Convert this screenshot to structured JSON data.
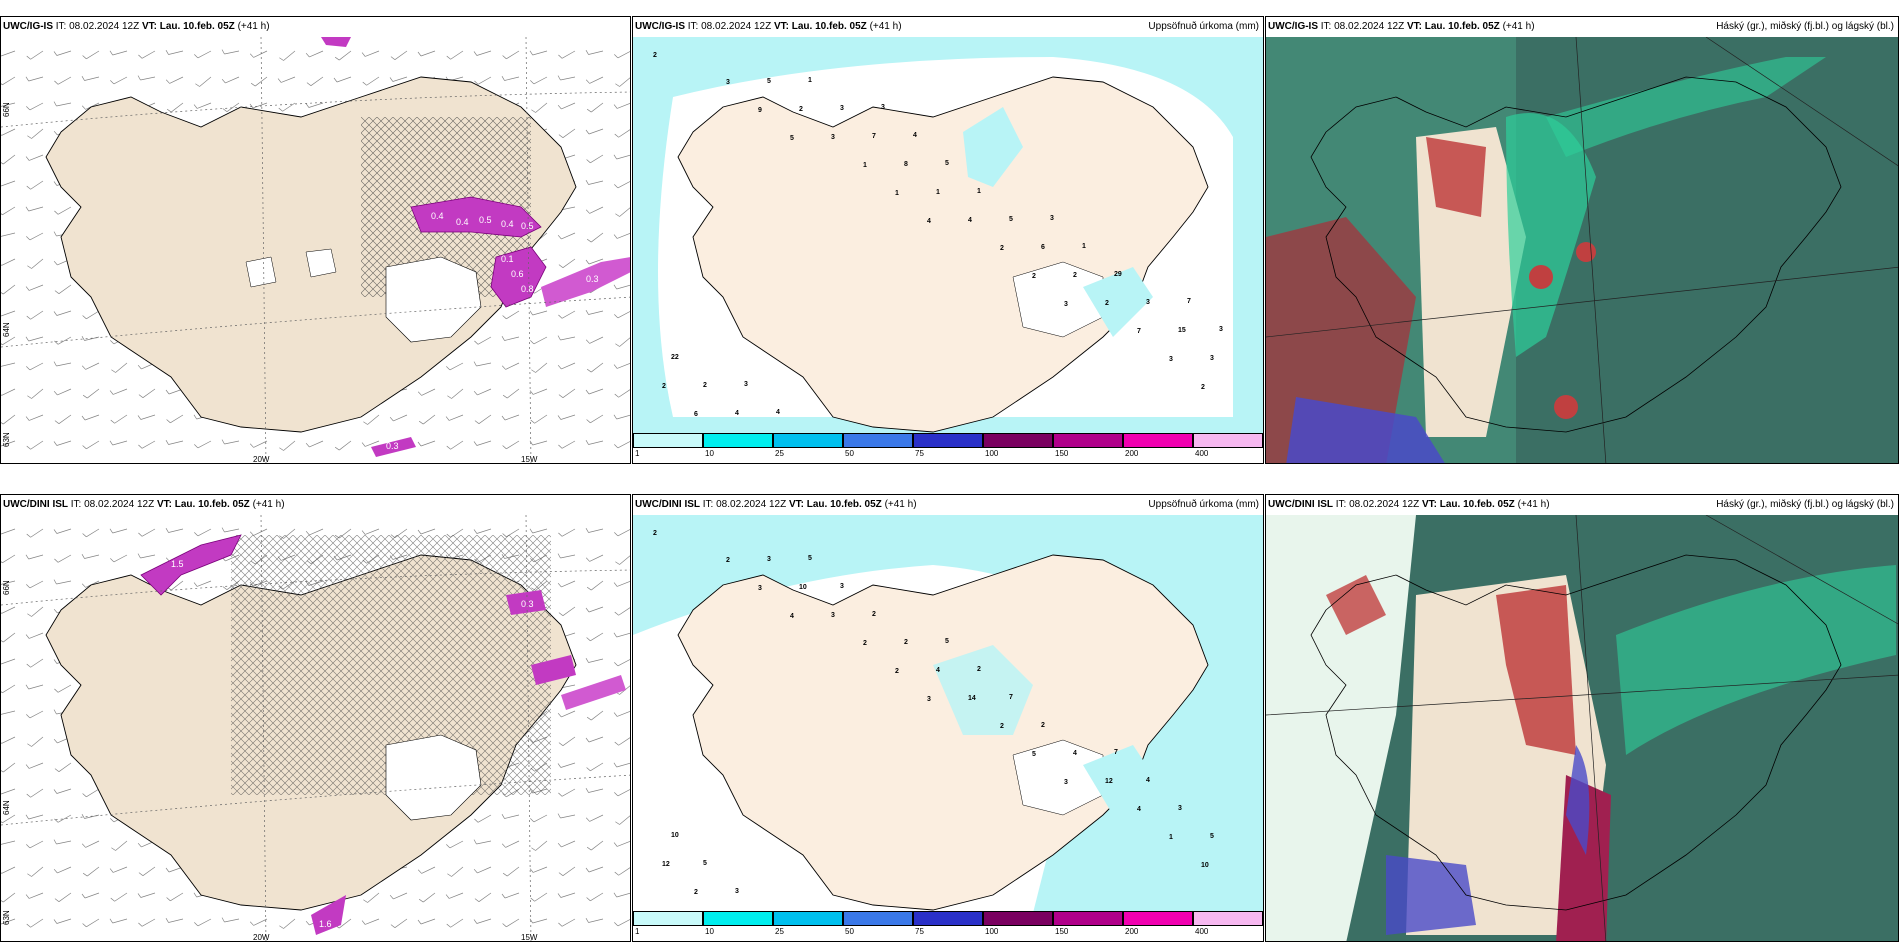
{
  "panels": {
    "top_left": {
      "model": "UWC/IG-IS",
      "it": "IT: 08.02.2024 12Z",
      "vt_label": "VT:",
      "vt": "Lau. 10.feb. 05Z",
      "lead": "(+41 h)",
      "right": ""
    },
    "top_mid": {
      "model": "UWC/IG-IS",
      "it": "IT: 08.02.2024 12Z",
      "vt_label": "VT:",
      "vt": "Lau. 10.feb. 05Z",
      "lead": "(+41 h)",
      "right": "Uppsöfnuð úrkoma (mm)"
    },
    "top_right": {
      "model": "UWC/IG-IS",
      "it": "IT: 08.02.2024 12Z",
      "vt_label": "VT:",
      "vt": "Lau. 10.feb. 05Z",
      "lead": "(+41 h)",
      "right": "Háský (gr.), miðský (fj.bl.) og lágský (bl.)"
    },
    "bot_left": {
      "model": "UWC/DINI ISL",
      "it": "IT: 08.02.2024 12Z",
      "vt_label": "VT:",
      "vt": "Lau. 10.feb. 05Z",
      "lead": "(+41 h)",
      "right": ""
    },
    "bot_mid": {
      "model": "UWC/DINI ISL",
      "it": "IT: 08.02.2024 12Z",
      "vt_label": "VT:",
      "vt": "Lau. 10.feb. 05Z",
      "lead": "(+41 h)",
      "right": "Uppsöfnuð úrkoma (mm)"
    },
    "bot_right": {
      "model": "UWC/DINI ISL",
      "it": "IT: 08.02.2024 12Z",
      "vt_label": "VT:",
      "vt": "Lau. 10.feb. 05Z",
      "lead": "(+41 h)",
      "right": "Háský (gr.), miðský (fj.bl.) og lágský (bl.)"
    }
  },
  "axes": {
    "lat_a": "66N",
    "lat_b": "64N",
    "lat_c": "63N",
    "lon_a": "20W",
    "lon_b": "15W"
  },
  "colorbar": {
    "labels": [
      "1",
      "10",
      "25",
      "50",
      "75",
      "100",
      "150",
      "200",
      "400"
    ],
    "colors": [
      "#c8fafa",
      "#00eeee",
      "#00c0ee",
      "#3a78e8",
      "#2a30c8",
      "#7a0060",
      "#b0008a",
      "#f000b0",
      "#f6b8f0"
    ]
  },
  "top_mid_values": [
    "2",
    "5",
    "4",
    "3",
    "2",
    "9",
    "1",
    "2",
    "3",
    "3",
    "1",
    "2",
    "7",
    "6",
    "3",
    "4",
    "2",
    "2",
    "2",
    "1",
    "2",
    "3",
    "5",
    "8",
    "6",
    "15",
    "4",
    "7",
    "5",
    "3",
    "2",
    "3",
    "1",
    "29",
    "22",
    "1",
    "5",
    "1",
    "3",
    "4",
    "4",
    "3",
    "7",
    "3",
    "3"
  ],
  "bot_mid_values": [
    "2",
    "4",
    "3",
    "3",
    "10",
    "3",
    "2",
    "5",
    "1",
    "2",
    "2",
    "2",
    "4",
    "2",
    "3",
    "14",
    "12",
    "12",
    "10",
    "4",
    "4",
    "5",
    "3",
    "2",
    "2",
    "3",
    "3",
    "2",
    "7",
    "4",
    "5",
    "3",
    "2",
    "7",
    "10",
    "5",
    "5"
  ],
  "pressure_labels_top": [
    "0.4",
    "0.4",
    "0.5",
    "0.4",
    "0.5",
    "0.6",
    "0.3",
    "0.8",
    "0.1",
    "0.3"
  ],
  "pressure_labels_bot": [
    "1.5",
    "0.3",
    "1.6"
  ],
  "colors": {
    "land": "#f0e3d0",
    "ice": "#ffffff",
    "sea_light": "#b8f4f6",
    "cloud_low": "#3b7d74",
    "cloud_mid": "#2ecf9a",
    "cloud_high": "#b94040"
  }
}
